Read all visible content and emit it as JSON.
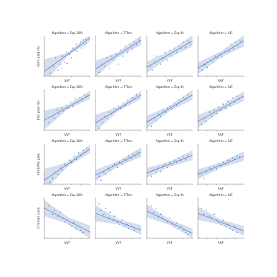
{
  "chart_data": {
    "type": "scatter",
    "layout": "facet-grid",
    "xlabel": "VVF",
    "column_title_prefix": "Algorithm = ",
    "columns": [
      "Exp 10%",
      "T-Test",
      "Exp fit",
      "AIC"
    ],
    "column_titles": [
      "Algorithm = Exp 10%",
      "Algorithm = T-Test",
      "Algorithm = Exp fit",
      "Algorithm = AIC"
    ],
    "rows": [
      "FEV1 pred (%)",
      "FVC pred (%)",
      "FEV1/FVC pred",
      "CT-Emph score"
    ],
    "x_ticks": [
      "",
      "",
      "",
      "",
      "",
      ""
    ],
    "y_ticks": [
      "",
      "",
      "",
      "",
      ""
    ],
    "grid": false,
    "regression": {
      "shown": true,
      "confidence_band": true,
      "color": "#4c72b0",
      "band_color": "#c5d3ea"
    },
    "marker_color": "#4c72b0",
    "xlim": [
      0,
      1
    ],
    "ylim": [
      0,
      1
    ],
    "panels": [
      [
        {
          "x": [
            0.12,
            0.2,
            0.25,
            0.3,
            0.35,
            0.38,
            0.4,
            0.45,
            0.48,
            0.5,
            0.55,
            0.6,
            0.62,
            0.68,
            0.7,
            0.72,
            0.78,
            0.8,
            0.82,
            0.85,
            0.88,
            0.9,
            0.92
          ],
          "y": [
            0.08,
            0.25,
            0.45,
            0.15,
            0.3,
            0.2,
            0.5,
            0.35,
            0.6,
            0.32,
            0.55,
            0.45,
            0.7,
            0.65,
            0.8,
            0.62,
            0.75,
            0.85,
            0.7,
            0.9,
            0.78,
            0.92,
            0.82
          ],
          "fit": [
            0.12,
            0.95
          ],
          "band": [
            0.3,
            0.08
          ]
        },
        {
          "x": [
            0.08,
            0.15,
            0.2,
            0.25,
            0.3,
            0.35,
            0.4,
            0.45,
            0.5,
            0.55,
            0.6,
            0.65,
            0.7,
            0.75,
            0.8,
            0.85,
            0.9,
            0.95
          ],
          "y": [
            0.1,
            0.3,
            0.25,
            0.45,
            0.2,
            0.5,
            0.4,
            0.55,
            0.3,
            0.65,
            0.5,
            0.75,
            0.6,
            0.8,
            0.7,
            0.85,
            0.78,
            0.9
          ],
          "fit": [
            0.18,
            0.9
          ],
          "band": [
            0.2,
            0.12
          ]
        },
        {
          "x": [
            0.08,
            0.12,
            0.18,
            0.22,
            0.3,
            0.35,
            0.4,
            0.45,
            0.5,
            0.55,
            0.6,
            0.65,
            0.7,
            0.75,
            0.8,
            0.85,
            0.9,
            0.95
          ],
          "y": [
            0.25,
            0.15,
            0.35,
            0.5,
            0.3,
            0.45,
            0.6,
            0.4,
            0.65,
            0.5,
            0.7,
            0.6,
            0.75,
            0.68,
            0.85,
            0.72,
            0.88,
            0.8
          ],
          "fit": [
            0.22,
            0.88
          ],
          "band": [
            0.14,
            0.14
          ]
        },
        {
          "x": [
            0.1,
            0.15,
            0.2,
            0.28,
            0.33,
            0.38,
            0.42,
            0.48,
            0.52,
            0.58,
            0.62,
            0.68,
            0.72,
            0.78,
            0.82,
            0.88,
            0.92
          ],
          "y": [
            0.15,
            0.28,
            0.22,
            0.4,
            0.35,
            0.5,
            0.45,
            0.55,
            0.48,
            0.6,
            0.7,
            0.62,
            0.8,
            0.68,
            0.85,
            0.75,
            0.88
          ],
          "fit": [
            0.2,
            0.88
          ],
          "band": [
            0.14,
            0.14
          ]
        }
      ],
      [
        {
          "x": [
            0.1,
            0.18,
            0.22,
            0.28,
            0.32,
            0.38,
            0.42,
            0.48,
            0.52,
            0.58,
            0.62,
            0.68,
            0.72,
            0.78,
            0.82,
            0.88,
            0.92
          ],
          "y": [
            0.2,
            0.35,
            0.3,
            0.5,
            0.42,
            0.55,
            0.48,
            0.62,
            0.55,
            0.7,
            0.6,
            0.78,
            0.7,
            0.82,
            0.75,
            0.88,
            0.85
          ],
          "fit": [
            0.25,
            0.88
          ],
          "band": [
            0.24,
            0.1
          ]
        },
        {
          "x": [
            0.08,
            0.15,
            0.2,
            0.25,
            0.3,
            0.35,
            0.4,
            0.45,
            0.5,
            0.55,
            0.6,
            0.65,
            0.7,
            0.75,
            0.8,
            0.85,
            0.9
          ],
          "y": [
            0.05,
            0.2,
            0.35,
            0.3,
            0.45,
            0.4,
            0.55,
            0.5,
            0.6,
            0.55,
            0.68,
            0.62,
            0.75,
            0.7,
            0.82,
            0.78,
            0.88
          ],
          "fit": [
            0.18,
            0.88
          ],
          "band": [
            0.2,
            0.1
          ]
        },
        {
          "x": [
            0.1,
            0.15,
            0.2,
            0.25,
            0.3,
            0.35,
            0.4,
            0.45,
            0.5,
            0.55,
            0.6,
            0.65,
            0.7,
            0.75,
            0.8,
            0.85,
            0.9
          ],
          "y": [
            0.1,
            0.3,
            0.25,
            0.4,
            0.35,
            0.5,
            0.45,
            0.55,
            0.6,
            0.52,
            0.68,
            0.62,
            0.75,
            0.72,
            0.82,
            0.78,
            0.88
          ],
          "fit": [
            0.2,
            0.88
          ],
          "band": [
            0.16,
            0.12
          ]
        },
        {
          "x": [
            0.08,
            0.12,
            0.18,
            0.25,
            0.3,
            0.35,
            0.4,
            0.45,
            0.5,
            0.55,
            0.6,
            0.65,
            0.7,
            0.75,
            0.8,
            0.85,
            0.9
          ],
          "y": [
            0.15,
            0.3,
            0.22,
            0.45,
            0.35,
            0.5,
            0.42,
            0.58,
            0.5,
            0.65,
            0.55,
            0.72,
            0.62,
            0.8,
            0.7,
            0.85,
            0.78
          ],
          "fit": [
            0.22,
            0.85
          ],
          "band": [
            0.16,
            0.12
          ]
        }
      ],
      [
        {
          "x": [
            0.12,
            0.18,
            0.25,
            0.3,
            0.35,
            0.4,
            0.45,
            0.5,
            0.55,
            0.6,
            0.65,
            0.7,
            0.75,
            0.8,
            0.85,
            0.9,
            0.92
          ],
          "y": [
            0.05,
            0.15,
            0.3,
            0.25,
            0.4,
            0.35,
            0.5,
            0.45,
            0.6,
            0.55,
            0.7,
            0.62,
            0.78,
            0.72,
            0.85,
            0.8,
            0.9
          ],
          "fit": [
            0.1,
            0.88
          ],
          "band": [
            0.28,
            0.1
          ]
        },
        {
          "x": [
            0.08,
            0.12,
            0.18,
            0.22,
            0.28,
            0.32,
            0.38,
            0.42,
            0.48,
            0.52,
            0.58,
            0.62,
            0.68,
            0.72,
            0.78,
            0.82,
            0.88,
            0.92
          ],
          "y": [
            0.2,
            0.1,
            0.3,
            0.25,
            0.4,
            0.35,
            0.45,
            0.5,
            0.42,
            0.55,
            0.5,
            0.62,
            0.58,
            0.7,
            0.65,
            0.75,
            0.7,
            0.8
          ],
          "fit": [
            0.22,
            0.8
          ],
          "band": [
            0.14,
            0.12
          ]
        },
        {
          "x": [
            0.1,
            0.15,
            0.2,
            0.25,
            0.3,
            0.35,
            0.4,
            0.45,
            0.5,
            0.55,
            0.6,
            0.65,
            0.7,
            0.75,
            0.8,
            0.85,
            0.9
          ],
          "y": [
            0.2,
            0.35,
            0.3,
            0.4,
            0.32,
            0.45,
            0.5,
            0.42,
            0.55,
            0.48,
            0.6,
            0.55,
            0.65,
            0.6,
            0.7,
            0.62,
            0.72
          ],
          "fit": [
            0.28,
            0.72
          ],
          "band": [
            0.12,
            0.12
          ]
        },
        {
          "x": [
            0.08,
            0.12,
            0.18,
            0.25,
            0.3,
            0.35,
            0.4,
            0.45,
            0.5,
            0.55,
            0.6,
            0.65,
            0.7,
            0.75,
            0.8,
            0.85,
            0.9
          ],
          "y": [
            0.25,
            0.15,
            0.3,
            0.4,
            0.35,
            0.45,
            0.38,
            0.5,
            0.45,
            0.55,
            0.5,
            0.6,
            0.58,
            0.65,
            0.62,
            0.7,
            0.68
          ],
          "fit": [
            0.25,
            0.7
          ],
          "band": [
            0.12,
            0.12
          ]
        }
      ],
      [
        {
          "x": [
            0.1,
            0.18,
            0.22,
            0.3,
            0.35,
            0.4,
            0.45,
            0.5,
            0.55,
            0.6,
            0.65,
            0.7,
            0.75,
            0.8,
            0.85
          ],
          "y": [
            0.8,
            0.6,
            0.7,
            0.55,
            0.65,
            0.5,
            0.4,
            0.45,
            0.35,
            0.3,
            0.38,
            0.25,
            0.3,
            0.2,
            0.15
          ],
          "fit": [
            0.75,
            0.15
          ],
          "band": [
            0.2,
            0.16
          ]
        },
        {
          "x": [
            0.08,
            0.12,
            0.18,
            0.22,
            0.28,
            0.32,
            0.38,
            0.42,
            0.48,
            0.52,
            0.58,
            0.62,
            0.68,
            0.72,
            0.78,
            0.85
          ],
          "y": [
            0.85,
            0.7,
            0.6,
            0.75,
            0.5,
            0.65,
            0.45,
            0.55,
            0.4,
            0.35,
            0.45,
            0.3,
            0.35,
            0.25,
            0.3,
            0.2
          ],
          "fit": [
            0.62,
            0.2
          ],
          "band": [
            0.2,
            0.12
          ]
        },
        {
          "x": [
            0.1,
            0.15,
            0.2,
            0.25,
            0.3,
            0.35,
            0.4,
            0.45,
            0.5,
            0.55,
            0.6,
            0.65,
            0.7,
            0.75,
            0.8,
            0.85,
            0.9
          ],
          "y": [
            0.8,
            0.65,
            0.75,
            0.55,
            0.6,
            0.5,
            0.45,
            0.4,
            0.5,
            0.35,
            0.3,
            0.38,
            0.25,
            0.3,
            0.2,
            0.15,
            0.1
          ],
          "fit": [
            0.68,
            0.12
          ],
          "band": [
            0.16,
            0.12
          ]
        },
        {
          "x": [
            0.08,
            0.12,
            0.18,
            0.25,
            0.3,
            0.35,
            0.4,
            0.45,
            0.5,
            0.55,
            0.6,
            0.65,
            0.7,
            0.75,
            0.8,
            0.85
          ],
          "y": [
            0.75,
            0.6,
            0.7,
            0.55,
            0.5,
            0.6,
            0.45,
            0.4,
            0.35,
            0.45,
            0.3,
            0.35,
            0.25,
            0.2,
            0.28,
            0.15
          ],
          "fit": [
            0.62,
            0.18
          ],
          "band": [
            0.16,
            0.12
          ]
        }
      ]
    ]
  }
}
